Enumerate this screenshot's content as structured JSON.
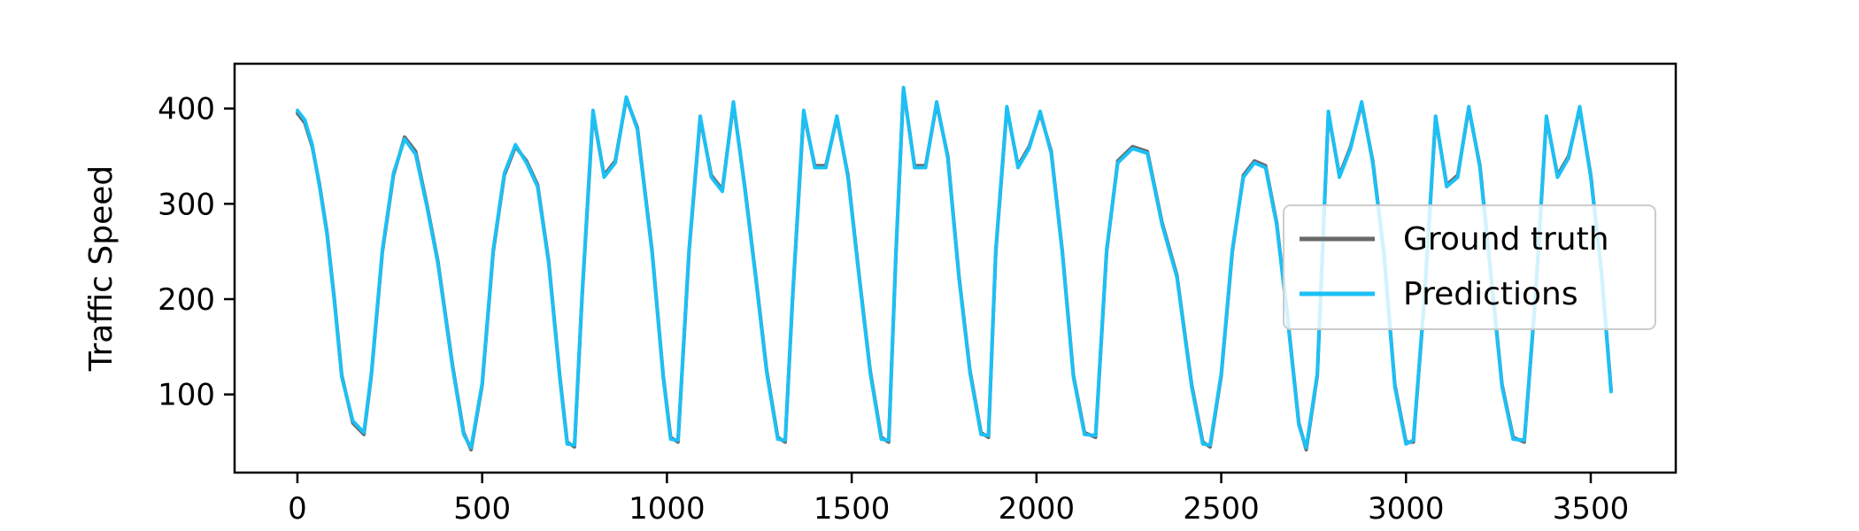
{
  "chart_data": {
    "type": "line",
    "title": "",
    "xlabel": "",
    "ylabel": "Traffic Speed",
    "xlim": [
      -170,
      3730
    ],
    "ylim": [
      18,
      447
    ],
    "xticks": [
      0,
      500,
      1000,
      1500,
      2000,
      2500,
      3000,
      3500
    ],
    "yticks": [
      100,
      200,
      300,
      400
    ],
    "grid": false,
    "legend": {
      "placement": "center-right",
      "entries": [
        "Ground truth",
        "Predictions"
      ]
    },
    "colors": {
      "Ground truth": "#696969",
      "Predictions": "#1cc0f5"
    },
    "series": [
      {
        "name": "Ground truth",
        "x": [
          0,
          20,
          40,
          60,
          80,
          100,
          120,
          150,
          180,
          200,
          230,
          260,
          290,
          320,
          350,
          380,
          420,
          450,
          470,
          500,
          530,
          560,
          590,
          620,
          650,
          680,
          710,
          730,
          750,
          770,
          800,
          830,
          860,
          890,
          920,
          960,
          990,
          1010,
          1030,
          1060,
          1090,
          1120,
          1150,
          1180,
          1210,
          1240,
          1270,
          1300,
          1320,
          1340,
          1370,
          1400,
          1430,
          1460,
          1490,
          1520,
          1550,
          1580,
          1600,
          1620,
          1640,
          1670,
          1700,
          1730,
          1760,
          1790,
          1820,
          1850,
          1870,
          1890,
          1920,
          1950,
          1980,
          2010,
          2040,
          2070,
          2100,
          2130,
          2160,
          2190,
          2220,
          2260,
          2300,
          2340,
          2380,
          2420,
          2450,
          2470,
          2500,
          2530,
          2560,
          2590,
          2620,
          2650,
          2680,
          2710,
          2730,
          2760,
          2790,
          2820,
          2850,
          2880,
          2910,
          2940,
          2970,
          3000,
          3020,
          3050,
          3080,
          3110,
          3140,
          3170,
          3200,
          3230,
          3260,
          3290,
          3320,
          3350,
          3380,
          3410,
          3440,
          3470,
          3500,
          3530,
          3555
        ],
        "y": [
          395,
          385,
          360,
          320,
          270,
          200,
          120,
          70,
          58,
          120,
          250,
          330,
          370,
          355,
          300,
          240,
          130,
          60,
          42,
          110,
          250,
          330,
          360,
          345,
          320,
          240,
          120,
          50,
          45,
          200,
          395,
          330,
          345,
          410,
          380,
          250,
          120,
          55,
          50,
          250,
          390,
          330,
          315,
          405,
          320,
          225,
          125,
          55,
          50,
          200,
          395,
          340,
          340,
          390,
          330,
          225,
          125,
          55,
          50,
          250,
          420,
          340,
          340,
          405,
          350,
          225,
          125,
          60,
          55,
          250,
          400,
          340,
          360,
          395,
          355,
          250,
          120,
          60,
          55,
          250,
          345,
          360,
          355,
          280,
          225,
          110,
          50,
          45,
          120,
          250,
          330,
          345,
          340,
          280,
          180,
          70,
          42,
          120,
          395,
          330,
          360,
          405,
          345,
          250,
          110,
          50,
          50,
          200,
          390,
          320,
          330,
          400,
          340,
          225,
          110,
          55,
          50,
          200,
          390,
          330,
          350,
          400,
          330,
          225,
          105
        ]
      },
      {
        "name": "Predictions",
        "x": [
          0,
          20,
          40,
          60,
          80,
          100,
          120,
          150,
          180,
          200,
          230,
          260,
          290,
          320,
          350,
          380,
          420,
          450,
          470,
          500,
          530,
          560,
          590,
          620,
          650,
          680,
          710,
          730,
          750,
          770,
          800,
          830,
          860,
          890,
          920,
          960,
          990,
          1010,
          1030,
          1060,
          1090,
          1120,
          1150,
          1180,
          1210,
          1240,
          1270,
          1300,
          1320,
          1340,
          1370,
          1400,
          1430,
          1460,
          1490,
          1520,
          1550,
          1580,
          1600,
          1620,
          1640,
          1670,
          1700,
          1730,
          1760,
          1790,
          1820,
          1850,
          1870,
          1890,
          1920,
          1950,
          1980,
          2010,
          2040,
          2070,
          2100,
          2130,
          2160,
          2190,
          2220,
          2260,
          2300,
          2340,
          2380,
          2420,
          2450,
          2470,
          2500,
          2530,
          2560,
          2590,
          2620,
          2650,
          2680,
          2710,
          2730,
          2760,
          2790,
          2820,
          2850,
          2880,
          2910,
          2940,
          2970,
          3000,
          3020,
          3050,
          3080,
          3110,
          3140,
          3170,
          3200,
          3230,
          3260,
          3290,
          3320,
          3350,
          3380,
          3410,
          3440,
          3470,
          3500,
          3530,
          3555
        ],
        "y": [
          398,
          388,
          362,
          318,
          268,
          198,
          118,
          72,
          60,
          122,
          252,
          332,
          368,
          352,
          298,
          238,
          128,
          58,
          44,
          112,
          252,
          332,
          362,
          343,
          318,
          238,
          118,
          48,
          47,
          202,
          398,
          328,
          343,
          412,
          378,
          248,
          118,
          53,
          52,
          252,
          392,
          328,
          313,
          407,
          318,
          223,
          123,
          53,
          52,
          202,
          398,
          338,
          338,
          392,
          328,
          223,
          123,
          53,
          52,
          252,
          422,
          338,
          338,
          407,
          348,
          223,
          123,
          58,
          57,
          252,
          402,
          338,
          358,
          397,
          353,
          248,
          118,
          58,
          57,
          252,
          343,
          358,
          353,
          278,
          223,
          108,
          48,
          47,
          122,
          252,
          328,
          343,
          338,
          278,
          178,
          68,
          44,
          122,
          397,
          328,
          358,
          407,
          343,
          248,
          108,
          48,
          52,
          202,
          392,
          318,
          328,
          402,
          338,
          223,
          108,
          53,
          52,
          202,
          392,
          328,
          348,
          402,
          328,
          223,
          103
        ]
      }
    ]
  }
}
